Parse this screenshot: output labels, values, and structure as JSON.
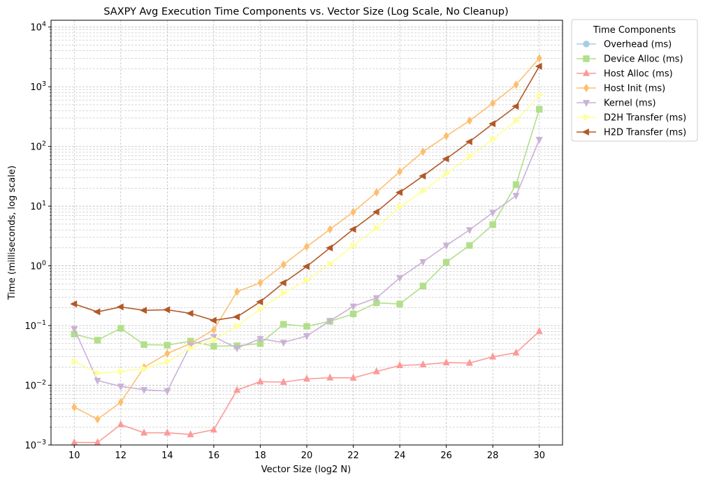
{
  "chart_data": {
    "type": "line",
    "title": "SAXPY Avg Execution Time Components vs. Vector Size (Log Scale, No Cleanup)",
    "xlabel": "Vector Size (log2 N)",
    "ylabel": "Time (milliseconds, log scale)",
    "xlim": [
      9,
      31
    ],
    "ylim": [
      0.001,
      13000
    ],
    "yscale": "log",
    "xticks": [
      10,
      12,
      14,
      16,
      18,
      20,
      22,
      24,
      26,
      28,
      30
    ],
    "yticks": [
      {
        "value": 0.001,
        "base": "10",
        "exp": "−3"
      },
      {
        "value": 0.01,
        "base": "10",
        "exp": "−2"
      },
      {
        "value": 0.1,
        "base": "10",
        "exp": "−1"
      },
      {
        "value": 1,
        "base": "10",
        "exp": "0"
      },
      {
        "value": 10,
        "base": "10",
        "exp": "1"
      },
      {
        "value": 100,
        "base": "10",
        "exp": "2"
      },
      {
        "value": 1000,
        "base": "10",
        "exp": "3"
      },
      {
        "value": 10000,
        "base": "10",
        "exp": "4"
      }
    ],
    "grid": true,
    "legend": {
      "title": "Time Components",
      "placement": "outside-top-right"
    },
    "x": [
      10,
      11,
      12,
      13,
      14,
      15,
      16,
      17,
      18,
      19,
      20,
      21,
      22,
      23,
      24,
      25,
      26,
      27,
      28,
      29,
      30
    ],
    "series": [
      {
        "name": "Overhead (ms)",
        "color": "#a6cee3",
        "marker": "circle",
        "values": [
          null,
          null,
          null,
          null,
          null,
          null,
          null,
          null,
          null,
          null,
          null,
          null,
          null,
          null,
          null,
          null,
          null,
          null,
          null,
          null,
          null
        ]
      },
      {
        "name": "Device Alloc (ms)",
        "color": "#b2df8a",
        "marker": "square",
        "values": [
          0.072,
          0.057,
          0.09,
          0.048,
          0.047,
          0.055,
          0.045,
          0.046,
          0.05,
          0.105,
          0.097,
          0.118,
          0.157,
          0.24,
          0.23,
          0.46,
          1.15,
          2.2,
          4.9,
          23,
          420
        ]
      },
      {
        "name": "Host Alloc (ms)",
        "color": "#fb9a99",
        "marker": "triangle-up",
        "values": [
          0.0011,
          0.0011,
          0.0022,
          0.0016,
          0.0016,
          0.0015,
          0.0018,
          0.0083,
          0.0115,
          0.0113,
          0.0128,
          0.0134,
          0.0133,
          0.017,
          0.0215,
          0.0222,
          0.024,
          0.0236,
          0.03,
          0.035,
          0.08
        ]
      },
      {
        "name": "Host Init (ms)",
        "color": "#fdbf6f",
        "marker": "diamond",
        "values": [
          0.0043,
          0.0027,
          0.0052,
          0.02,
          0.034,
          0.05,
          0.085,
          0.37,
          0.52,
          1.05,
          2.1,
          4.1,
          8,
          17,
          38,
          82,
          150,
          270,
          530,
          1080,
          3000
        ]
      },
      {
        "name": "Kernel (ms)",
        "color": "#cab2d6",
        "marker": "triangle-down",
        "values": [
          0.088,
          0.012,
          0.0096,
          0.0084,
          0.008,
          0.047,
          0.065,
          0.042,
          0.06,
          0.052,
          0.067,
          0.12,
          0.21,
          0.29,
          0.63,
          1.17,
          2.2,
          4,
          7.8,
          15,
          130
        ]
      },
      {
        "name": "D2H Transfer (ms)",
        "color": "#ffff99",
        "marker": "triangle-right",
        "values": [
          0.025,
          0.016,
          0.017,
          0.019,
          0.025,
          0.042,
          0.058,
          0.098,
          0.19,
          0.35,
          0.58,
          1.08,
          2.2,
          4.3,
          9.8,
          18,
          35,
          68,
          132,
          270,
          720
        ]
      },
      {
        "name": "H2D Transfer (ms)",
        "color": "#b15928",
        "marker": "triangle-left",
        "values": [
          0.23,
          0.17,
          0.205,
          0.18,
          0.184,
          0.16,
          0.122,
          0.14,
          0.25,
          0.52,
          0.98,
          2,
          4.1,
          8,
          17,
          32,
          62,
          120,
          240,
          470,
          2200
        ]
      }
    ]
  }
}
